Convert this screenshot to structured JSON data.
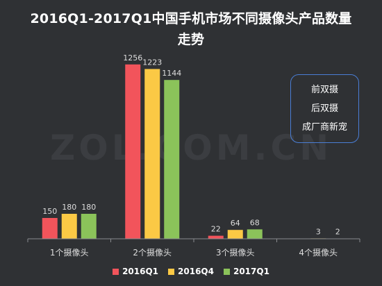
{
  "watermark": "ZOL.COM.CN",
  "note_box": [
    "前双摄",
    "后双摄",
    "成厂商新宠"
  ],
  "colors": {
    "background": "#2f3134",
    "axis": "#8a8c8f",
    "label": "#dedede",
    "watermark": "#3b3d41",
    "note_border": "#4a7ed6"
  },
  "chart_data": {
    "type": "bar",
    "title": "2016Q1-2017Q1中国手机市场不同摄像头产品数量走势",
    "title_lines": [
      "2016Q1-2017Q1中国手机市场不同摄像头产品数量",
      "走势"
    ],
    "categories": [
      "1个摄像头",
      "2个摄像头",
      "3个摄像头",
      "4个摄像头"
    ],
    "series": [
      {
        "name": "2016Q1",
        "color": "#f2545b",
        "values": [
          150,
          1256,
          22,
          null
        ]
      },
      {
        "name": "2016Q4",
        "color": "#fbc945",
        "values": [
          180,
          1223,
          64,
          3
        ]
      },
      {
        "name": "2017Q1",
        "color": "#8bc35a",
        "values": [
          180,
          1144,
          68,
          2
        ]
      }
    ],
    "ylim": [
      0,
      1300
    ],
    "grid": false,
    "legend": "bottom"
  }
}
